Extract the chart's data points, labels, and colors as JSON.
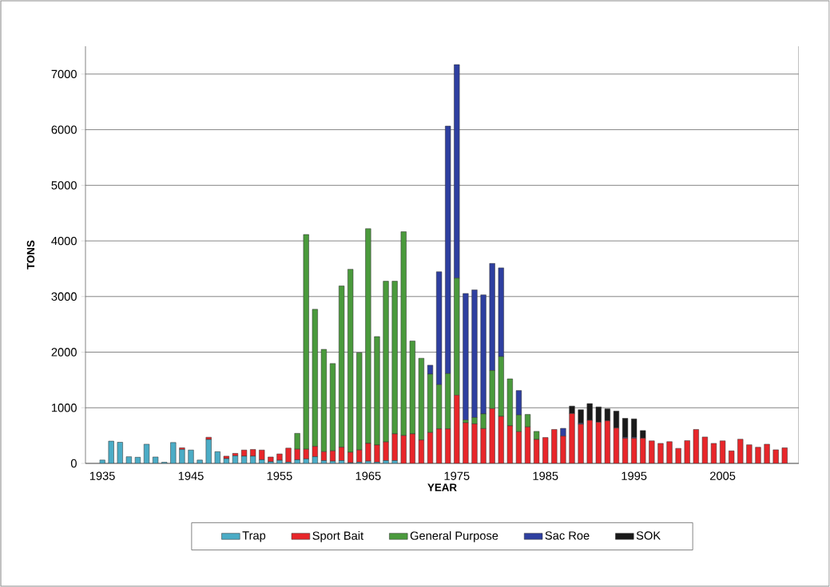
{
  "chart_data": {
    "type": "bar",
    "stacked": true,
    "xlabel": "YEAR",
    "ylabel": "TONS",
    "categories": [
      "1935",
      null,
      null,
      null,
      null,
      null,
      null,
      null,
      null,
      null,
      "1945",
      null,
      null,
      null,
      null,
      null,
      null,
      null,
      null,
      null,
      "1955",
      null,
      null,
      null,
      null,
      null,
      null,
      null,
      null,
      null,
      "1965",
      null,
      null,
      null,
      null,
      null,
      null,
      null,
      null,
      null,
      "1975",
      null,
      null,
      null,
      null,
      null,
      null,
      null,
      null,
      null,
      "1985",
      null,
      null,
      null,
      null,
      null,
      null,
      null,
      null,
      null,
      "1995",
      null,
      null,
      null,
      null,
      null,
      null,
      null,
      null,
      null,
      "2005",
      null,
      null,
      null,
      null,
      null,
      null,
      null
    ],
    "ylim": [
      0,
      7500
    ],
    "yticks": [
      0,
      1000,
      2000,
      3000,
      4000,
      5000,
      6000,
      7000
    ],
    "grid": "y",
    "legend": "bottom",
    "series": [
      {
        "name": "Trap",
        "color": "#4bacc6",
        "values": [
          60,
          400,
          380,
          120,
          110,
          345,
          115,
          20,
          375,
          250,
          240,
          60,
          430,
          210,
          85,
          135,
          130,
          130,
          65,
          30,
          55,
          20,
          65,
          80,
          120,
          50,
          40,
          50,
          10,
          20,
          40,
          20,
          50,
          50,
          0,
          0,
          0,
          0,
          0,
          0,
          0,
          0,
          0,
          0,
          0,
          0,
          0,
          0,
          0,
          0,
          0,
          0,
          0,
          0,
          0,
          0,
          0,
          0,
          0,
          0,
          0,
          0,
          0,
          0,
          0,
          0,
          0,
          0,
          0,
          0,
          0,
          0,
          0,
          0,
          0,
          0,
          0,
          0
        ]
      },
      {
        "name": "Sport Bait",
        "color": "#e8262a",
        "values": [
          0,
          0,
          0,
          0,
          0,
          0,
          0,
          0,
          0,
          30,
          0,
          0,
          40,
          0,
          45,
          45,
          110,
          120,
          175,
          85,
          115,
          255,
          190,
          175,
          185,
          160,
          185,
          240,
          190,
          220,
          320,
          310,
          335,
          480,
          500,
          530,
          420,
          555,
          620,
          620,
          1225,
          730,
          710,
          625,
          985,
          845,
          675,
          570,
          655,
          430,
          465,
          610,
          490,
          895,
          705,
          775,
          740,
          765,
          635,
          450,
          450,
          450,
          405,
          360,
          390,
          270,
          410,
          610,
          475,
          360,
          405,
          225,
          435,
          335,
          290,
          345,
          245,
          280
        ]
      },
      {
        "name": "General Purpose",
        "color": "#4a9a3c",
        "values": [
          0,
          0,
          0,
          0,
          0,
          0,
          0,
          0,
          0,
          0,
          0,
          0,
          0,
          0,
          0,
          0,
          0,
          0,
          0,
          0,
          0,
          0,
          285,
          3860,
          2465,
          1840,
          1570,
          2900,
          3290,
          1750,
          3860,
          1950,
          2890,
          2745,
          3665,
          1670,
          1470,
          1050,
          795,
          995,
          2105,
          50,
          115,
          265,
          685,
          1075,
          845,
          300,
          225,
          145,
          0,
          0,
          0,
          0,
          0,
          0,
          0,
          0,
          0,
          0,
          0,
          0,
          0,
          0,
          0,
          0,
          0,
          0,
          0,
          0,
          0,
          0,
          0,
          0,
          0,
          0,
          0,
          0
        ]
      },
      {
        "name": "Sac Roe",
        "color": "#2e3fa0",
        "values": [
          0,
          0,
          0,
          0,
          0,
          0,
          0,
          0,
          0,
          0,
          0,
          0,
          0,
          0,
          0,
          0,
          0,
          0,
          0,
          0,
          0,
          0,
          0,
          0,
          0,
          0,
          0,
          0,
          0,
          0,
          0,
          0,
          0,
          0,
          0,
          0,
          0,
          160,
          2030,
          4450,
          3840,
          2275,
          2295,
          2140,
          1925,
          1595,
          0,
          440,
          0,
          0,
          0,
          0,
          140,
          0,
          15,
          0,
          0,
          0,
          0,
          15,
          15,
          0,
          0,
          0,
          0,
          0,
          0,
          0,
          0,
          0,
          0,
          0,
          0,
          0,
          0,
          0,
          0,
          0
        ]
      },
      {
        "name": "SOK",
        "color": "#1a1a1a",
        "values": [
          0,
          0,
          0,
          0,
          0,
          0,
          0,
          0,
          0,
          0,
          0,
          0,
          0,
          0,
          0,
          0,
          0,
          0,
          0,
          0,
          0,
          0,
          0,
          0,
          0,
          0,
          0,
          0,
          0,
          0,
          0,
          0,
          0,
          0,
          0,
          0,
          0,
          0,
          0,
          0,
          0,
          0,
          0,
          0,
          0,
          0,
          0,
          0,
          0,
          0,
          0,
          0,
          0,
          135,
          245,
          300,
          275,
          215,
          305,
          345,
          335,
          140,
          0,
          0,
          0,
          0,
          0,
          0,
          0,
          0,
          0,
          0,
          0,
          0,
          0,
          0,
          0,
          0
        ]
      }
    ]
  }
}
